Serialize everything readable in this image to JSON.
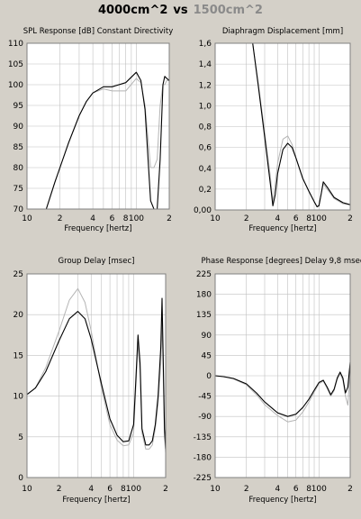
{
  "heading": {
    "label_a": "4000cm^2",
    "vs": "vs",
    "label_b": "1500cm^2"
  },
  "colors": {
    "series_a": "#000000",
    "series_b": "#b4b4b4",
    "panel_bg": "#ffffff",
    "frame_bg": "#d4d0c8",
    "grid": "#c0c0c0"
  },
  "chart_data": [
    {
      "type": "line",
      "title": "SPL Response [dB]   Constant Directivity",
      "xlabel": "Frequency [hertz]",
      "xscale": "log",
      "xlim": [
        10,
        200
      ],
      "ylim": [
        70,
        110
      ],
      "grid": true,
      "yticks": [
        {
          "v": 70,
          "label": "70"
        },
        {
          "v": 75,
          "label": "75"
        },
        {
          "v": 80,
          "label": "80"
        },
        {
          "v": 85,
          "label": "85"
        },
        {
          "v": 90,
          "label": "90"
        },
        {
          "v": 95,
          "label": "95"
        },
        {
          "v": 100,
          "label": "100"
        },
        {
          "v": 105,
          "label": "105"
        },
        {
          "v": 110,
          "label": "110"
        }
      ],
      "xticks": [
        {
          "v": 10,
          "label": "10"
        },
        {
          "v": 20,
          "label": "2"
        },
        {
          "v": 40,
          "label": "4"
        },
        {
          "v": 60,
          "label": "6"
        },
        {
          "v": 80,
          "label": "8"
        },
        {
          "v": 100,
          "label": "100"
        },
        {
          "v": 200,
          "label": "2"
        }
      ],
      "series": [
        {
          "x": [
            15,
            18,
            20,
            24,
            30,
            35,
            40,
            50,
            60,
            80,
            100,
            110,
            120,
            135,
            145,
            155,
            165,
            175,
            182,
            190,
            200
          ],
          "y": [
            70,
            76.5,
            80,
            86,
            92.5,
            96,
            98,
            99.5,
            99.5,
            100.5,
            103,
            101,
            94,
            72,
            70,
            70,
            82,
            100,
            102,
            101.5,
            101
          ]
        },
        {
          "x": [
            15,
            18,
            20,
            24,
            30,
            35,
            40,
            50,
            60,
            80,
            100,
            110,
            120,
            135,
            145,
            155,
            165,
            175,
            182,
            190,
            200
          ],
          "y": [
            70,
            76.5,
            80,
            86,
            92.5,
            96,
            98,
            99,
            98.5,
            98.5,
            101.5,
            100.5,
            95,
            80,
            80,
            82,
            95,
            100,
            100,
            101,
            101
          ]
        }
      ]
    },
    {
      "type": "line",
      "title": "Diaphragm Displacement [mm]",
      "xlabel": "Frequency [hertz]",
      "xscale": "log",
      "xlim": [
        10,
        200
      ],
      "ylim": [
        0,
        1.6
      ],
      "grid": true,
      "yticks": [
        {
          "v": 0,
          "label": "0,00"
        },
        {
          "v": 0.2,
          "label": "0,2"
        },
        {
          "v": 0.4,
          "label": "0,4"
        },
        {
          "v": 0.6,
          "label": "0,6"
        },
        {
          "v": 0.8,
          "label": "0,8"
        },
        {
          "v": 1.0,
          "label": "1,0"
        },
        {
          "v": 1.2,
          "label": "1,2"
        },
        {
          "v": 1.4,
          "label": "1,4"
        },
        {
          "v": 1.6,
          "label": "1,6"
        }
      ],
      "xticks": [
        {
          "v": 10,
          "label": "10"
        },
        {
          "v": 20,
          "label": "2"
        },
        {
          "v": 40,
          "label": "4"
        },
        {
          "v": 60,
          "label": "6"
        },
        {
          "v": 80,
          "label": "8"
        },
        {
          "v": 100,
          "label": "100"
        },
        {
          "v": 200,
          "label": "2"
        }
      ],
      "series": [
        {
          "x": [
            23,
            26,
            30,
            34,
            36,
            38,
            40,
            45,
            50,
            55,
            60,
            70,
            80,
            90,
            96,
            100,
            105,
            110,
            120,
            140,
            170,
            200
          ],
          "y": [
            1.6,
            1.2,
            0.7,
            0.25,
            0.04,
            0.15,
            0.35,
            0.58,
            0.64,
            0.6,
            0.5,
            0.3,
            0.18,
            0.08,
            0.03,
            0.04,
            0.15,
            0.27,
            0.22,
            0.12,
            0.07,
            0.05
          ]
        },
        {
          "x": [
            23,
            26,
            30,
            34,
            36,
            38,
            40,
            45,
            50,
            55,
            60,
            70,
            80,
            90,
            96,
            100,
            105,
            110,
            120,
            140,
            170,
            200
          ],
          "y": [
            1.6,
            1.22,
            0.75,
            0.32,
            0.08,
            0.25,
            0.45,
            0.68,
            0.71,
            0.63,
            0.5,
            0.3,
            0.18,
            0.08,
            0.03,
            0.05,
            0.15,
            0.25,
            0.2,
            0.11,
            0.06,
            0.05
          ]
        }
      ]
    },
    {
      "type": "line",
      "title": "Group Delay [msec]",
      "xlabel": "Frequency [hertz]",
      "xscale": "log",
      "xlim": [
        10,
        200
      ],
      "ylim": [
        0,
        25
      ],
      "grid": true,
      "yticks": [
        {
          "v": 0,
          "label": "0"
        },
        {
          "v": 5,
          "label": "5"
        },
        {
          "v": 10,
          "label": "10"
        },
        {
          "v": 15,
          "label": "15"
        },
        {
          "v": 20,
          "label": "20"
        },
        {
          "v": 25,
          "label": "25"
        }
      ],
      "xticks": [
        {
          "v": 10,
          "label": "10"
        },
        {
          "v": 20,
          "label": "2"
        },
        {
          "v": 40,
          "label": "4"
        },
        {
          "v": 60,
          "label": "6"
        },
        {
          "v": 80,
          "label": "8"
        },
        {
          "v": 100,
          "label": "100"
        },
        {
          "v": 200,
          "label": "2"
        }
      ],
      "series": [
        {
          "x": [
            10,
            12,
            15,
            20,
            25,
            30,
            35,
            40,
            50,
            60,
            70,
            80,
            90,
            100,
            105,
            110,
            115,
            120,
            130,
            140,
            150,
            160,
            170,
            180,
            185,
            190,
            195,
            200
          ],
          "y": [
            10.2,
            11,
            13,
            16.8,
            19.5,
            20.4,
            19.5,
            17,
            11.5,
            7.2,
            5.2,
            4.4,
            4.5,
            6.5,
            12,
            17.5,
            14,
            6,
            4,
            4,
            4.5,
            6.5,
            10,
            16,
            22,
            14,
            6,
            3.5
          ]
        },
        {
          "x": [
            10,
            12,
            15,
            20,
            25,
            30,
            35,
            40,
            50,
            60,
            70,
            80,
            90,
            100,
            105,
            110,
            115,
            120,
            130,
            140,
            150,
            160,
            170,
            180,
            185,
            190,
            195,
            200
          ],
          "y": [
            10.2,
            11,
            13.5,
            18,
            21.8,
            23.2,
            21.5,
            18,
            11,
            6.5,
            4.6,
            3.9,
            4,
            5.5,
            11,
            16.5,
            13,
            5.5,
            3.5,
            3.5,
            4,
            6,
            9,
            14,
            19,
            12,
            5,
            3
          ]
        }
      ]
    },
    {
      "type": "line",
      "title": "Phase Response [degrees]   Delay 9,8 msec",
      "xlabel": "Frequency [hertz]",
      "xscale": "log",
      "xlim": [
        10,
        200
      ],
      "ylim": [
        -225,
        225
      ],
      "grid": true,
      "yticks": [
        {
          "v": -225,
          "label": "-225"
        },
        {
          "v": -180,
          "label": "-180"
        },
        {
          "v": -135,
          "label": "-135"
        },
        {
          "v": -90,
          "label": "-90"
        },
        {
          "v": -45,
          "label": "-45"
        },
        {
          "v": 0,
          "label": "0"
        },
        {
          "v": 45,
          "label": "45"
        },
        {
          "v": 90,
          "label": "90"
        },
        {
          "v": 135,
          "label": "135"
        },
        {
          "v": 180,
          "label": "180"
        },
        {
          "v": 225,
          "label": "225"
        }
      ],
      "xticks": [
        {
          "v": 10,
          "label": "10"
        },
        {
          "v": 20,
          "label": "2"
        },
        {
          "v": 40,
          "label": "4"
        },
        {
          "v": 60,
          "label": "6"
        },
        {
          "v": 80,
          "label": "8"
        },
        {
          "v": 100,
          "label": "100"
        },
        {
          "v": 200,
          "label": "2"
        }
      ],
      "series": [
        {
          "x": [
            10,
            12,
            15,
            20,
            25,
            30,
            40,
            50,
            60,
            70,
            80,
            90,
            100,
            110,
            120,
            130,
            140,
            150,
            160,
            170,
            180,
            190,
            200
          ],
          "y": [
            0,
            -2,
            -6,
            -18,
            -38,
            -58,
            -82,
            -90,
            -85,
            -70,
            -52,
            -32,
            -15,
            -10,
            -25,
            -42,
            -30,
            -5,
            8,
            -5,
            -38,
            -25,
            30
          ]
        },
        {
          "x": [
            10,
            12,
            15,
            20,
            25,
            30,
            40,
            50,
            60,
            70,
            80,
            90,
            100,
            110,
            120,
            130,
            140,
            150,
            160,
            170,
            180,
            190,
            200
          ],
          "y": [
            0,
            -2,
            -7,
            -20,
            -42,
            -64,
            -88,
            -102,
            -98,
            -80,
            -58,
            -36,
            -18,
            -12,
            -28,
            -45,
            -33,
            -8,
            5,
            -10,
            -45,
            -65,
            15
          ]
        }
      ]
    }
  ]
}
